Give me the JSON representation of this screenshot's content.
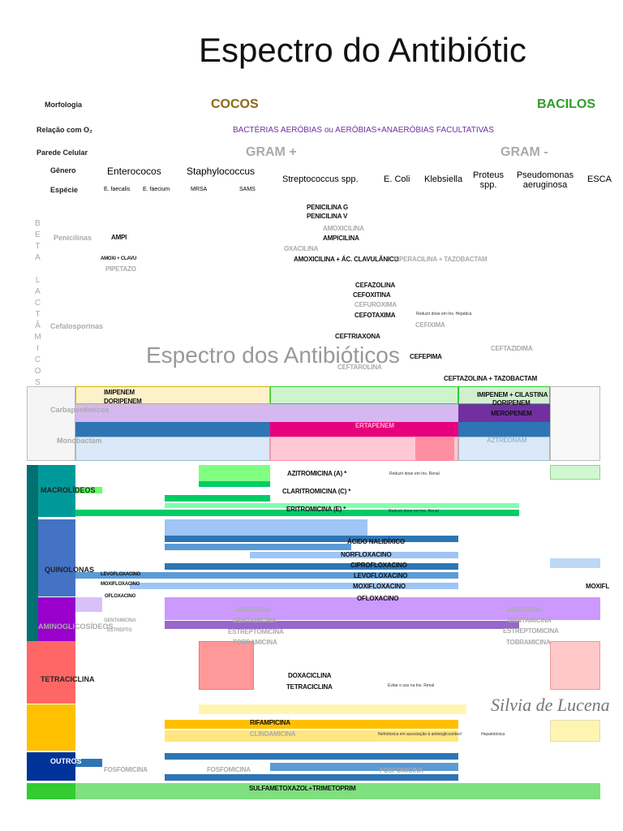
{
  "title": "Espectro do   Antibiótic",
  "header": {
    "morfologia": "Morfologia",
    "cocos": "COCOS",
    "bacilos": "BACILOS",
    "relacao": "Relação com O₂",
    "aerobias": "BACTÉRIAS AERÓBIAS ou AERÓBIAS+ANAERÓBIAS FACULTATIVAS",
    "parede": "Parede Celular",
    "gram_pos": "GRAM +",
    "gram_neg": "GRAM -",
    "genero": "Gênero",
    "especie": "Espécie",
    "generos": [
      "Enterococos",
      "Staphylococcus",
      "Streptococcus spp.",
      "E. Coli",
      "Klebsiella",
      "Proteus spp.",
      "Pseudomonas aeruginosa",
      "ESCA"
    ],
    "especies": [
      "E. faecalis",
      "E. faecium",
      "MRSA",
      "SAMS"
    ]
  },
  "beta": "BETA LACTÂMICOS",
  "classes": [
    "Penicilinas",
    "Cefalosporinas",
    "Carbapenêmicos",
    "Monobactam",
    "MACROLÍDEOS",
    "QUINOLONAS",
    "AMINOGLICOSÍDEOS",
    "TETRACICLINA",
    "OUTROS"
  ],
  "drugs": [
    "PENICILINA G",
    "PENICILINA V",
    "AMPI",
    "AMOXICILINA",
    "AMPICILINA",
    "OXACILINA",
    "AMOXICILINA + ÁC. CLAVULÂNICO",
    "AMOXI + CLAVU",
    "PIPETAZO",
    "PIPERACILINA + TAZOBACTAM",
    "CEFAZOLINA",
    "CEFOXITINA",
    "CEFUROXIMA",
    "CEFOTAXIMA",
    "CEFIXIMA",
    "CEFTRIAXONA",
    "CEFTAZIDIMA",
    "CEFEPIMA",
    "CEFTAROLINA",
    "CEFTAZOLINA + TAZOBACTAM",
    "IMIPENEM",
    "DORIPENEM",
    "IMIPENEM + CILASTINA",
    "DORIPENEM",
    "MEROPENEM",
    "ERTAPENEM",
    "AZTREONAM",
    "AZITROMICINA (A) *",
    "CLARITROMICINA (C) *",
    "ERITROMICINA (E) *",
    "ÁCIDO NALIDÍXICO",
    "NORFLOXACINO",
    "CIPROFLOXACINO",
    "LEVOFLOXACINO",
    "MOXIFLOXACINO",
    "OFLOXACINO",
    "LEVOFLOXACINO",
    "MOXIFLOXACINO",
    "OFLOXACINO",
    "MOXIFL",
    "AMICACINA",
    "GENTAMICINA",
    "ESTREPTOMICINA",
    "TOBRAMICINA",
    "AMICACINA",
    "GENTAMICINA",
    "ESTREPTOMICINA",
    "TOBRAMICINA",
    "GENTAMICINA",
    "ESTREPTO",
    "DOXACICLINA",
    "TETRACICLINA",
    "RIFAMPICINA",
    "CLINDAMICINA",
    "FOSFOMICINA",
    "FOSFOMICINA",
    "FOSFOMICINA",
    "SULFAMETOXAZOL+TRIMETOPRIM"
  ],
  "notes": [
    "Reduzir dose em Ins. Renal",
    "Reduzir dose em Ins. Renal",
    "Evitar o uso na Ins. Renal",
    "Nefrotóxica em associação à aminoglicosídeo!",
    "Hepatotóxica",
    "Reduzir dose em Ins. Hepática"
  ],
  "watermark": "Espectro dos Antibióticos",
  "signature": "Silvia de Lucena"
}
